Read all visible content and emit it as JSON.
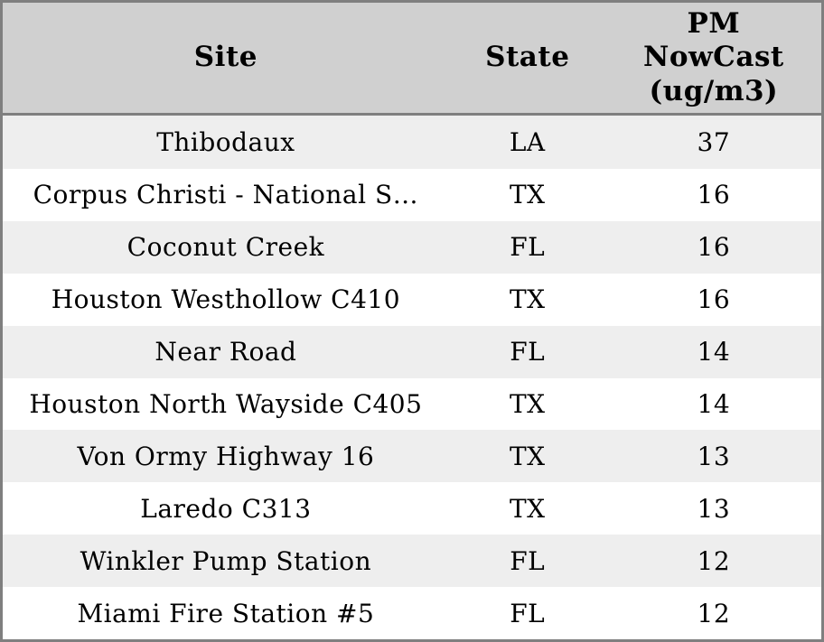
{
  "chart_data": {
    "type": "table",
    "columns": [
      "Site",
      "State",
      "PM NowCast (ug/m3)"
    ],
    "rows": [
      [
        "Thibodaux",
        "LA",
        37
      ],
      [
        "Corpus Christi - National S…",
        "TX",
        16
      ],
      [
        "Coconut Creek",
        "FL",
        16
      ],
      [
        "Houston Westhollow C410",
        "TX",
        16
      ],
      [
        "Near Road",
        "FL",
        14
      ],
      [
        "Houston North Wayside C405",
        "TX",
        14
      ],
      [
        "Von Ormy Highway 16",
        "TX",
        13
      ],
      [
        "Laredo C313",
        "TX",
        13
      ],
      [
        "Winkler Pump Station",
        "FL",
        12
      ],
      [
        "Miami Fire Station #5",
        "FL",
        12
      ]
    ]
  },
  "header": {
    "site": "Site",
    "state": "State",
    "pm": "PM\nNowCast\n(ug/m3)"
  },
  "colors": {
    "header_bg": "#d0d0d0",
    "border": "#7f7f7f",
    "row_stripe_bg": "#eeeeee",
    "row_bg": "#ffffff",
    "text": "#000000"
  }
}
